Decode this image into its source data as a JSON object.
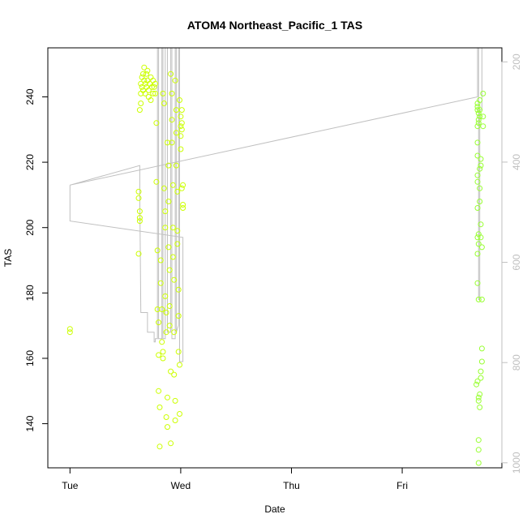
{
  "chart_data": {
    "type": "scatter",
    "title": "ATOM4 Northeast_Pacific_1 TAS",
    "xlabel": "Date",
    "ylabel": "TAS",
    "x_unit": "days since Tue 00:00",
    "x_ticks": [
      {
        "v": 0,
        "label": "Tue"
      },
      {
        "v": 1,
        "label": "Wed"
      },
      {
        "v": 2,
        "label": "Thu"
      },
      {
        "v": 3,
        "label": "Fri"
      }
    ],
    "xlim": [
      -0.2,
      3.9
    ],
    "ylim": [
      126.5,
      255
    ],
    "y_ticks": [
      140,
      160,
      180,
      200,
      220,
      240
    ],
    "right_axis": {
      "ticks": [
        200,
        400,
        600,
        800,
        1000
      ],
      "lim": [
        1010,
        172
      ],
      "color": "#bfbfbf"
    },
    "grid": false,
    "series": [
      {
        "color": "#ccff00",
        "points": [
          [
            0.0,
            169
          ],
          [
            0.0,
            168
          ],
          [
            0.62,
            192
          ],
          [
            0.62,
            211
          ],
          [
            0.62,
            209
          ],
          [
            0.63,
            205
          ],
          [
            0.63,
            203
          ],
          [
            0.63,
            202
          ],
          [
            0.63,
            236
          ],
          [
            0.64,
            238
          ],
          [
            0.64,
            241
          ],
          [
            0.64,
            244
          ],
          [
            0.65,
            246
          ],
          [
            0.65,
            243
          ],
          [
            0.66,
            247
          ],
          [
            0.66,
            242
          ],
          [
            0.67,
            245
          ],
          [
            0.67,
            249
          ],
          [
            0.68,
            244
          ],
          [
            0.68,
            241
          ],
          [
            0.69,
            247
          ],
          [
            0.69,
            243
          ],
          [
            0.7,
            245
          ],
          [
            0.7,
            248
          ],
          [
            0.71,
            242
          ],
          [
            0.71,
            240
          ],
          [
            0.72,
            244
          ],
          [
            0.73,
            246
          ],
          [
            0.73,
            239
          ],
          [
            0.74,
            243
          ],
          [
            0.75,
            245
          ],
          [
            0.75,
            241
          ],
          [
            0.76,
            243
          ],
          [
            0.77,
            244
          ],
          [
            0.77,
            241
          ],
          [
            0.78,
            232
          ],
          [
            0.78,
            214
          ],
          [
            0.79,
            193
          ],
          [
            0.79,
            175
          ],
          [
            0.8,
            171
          ],
          [
            0.8,
            161
          ],
          [
            0.8,
            150
          ],
          [
            0.81,
            145
          ],
          [
            0.81,
            133
          ],
          [
            0.82,
            190
          ],
          [
            0.82,
            183
          ],
          [
            0.83,
            165
          ],
          [
            0.83,
            175
          ],
          [
            0.84,
            162
          ],
          [
            0.84,
            160
          ],
          [
            0.84,
            241
          ],
          [
            0.85,
            238
          ],
          [
            0.85,
            212
          ],
          [
            0.86,
            205
          ],
          [
            0.86,
            200
          ],
          [
            0.86,
            179
          ],
          [
            0.87,
            174
          ],
          [
            0.87,
            168
          ],
          [
            0.87,
            142
          ],
          [
            0.88,
            139
          ],
          [
            0.88,
            148
          ],
          [
            0.88,
            226
          ],
          [
            0.89,
            219
          ],
          [
            0.89,
            208
          ],
          [
            0.89,
            194
          ],
          [
            0.9,
            187
          ],
          [
            0.9,
            176
          ],
          [
            0.9,
            170
          ],
          [
            0.91,
            156
          ],
          [
            0.91,
            134
          ],
          [
            0.91,
            247
          ],
          [
            0.92,
            241
          ],
          [
            0.92,
            233
          ],
          [
            0.92,
            226
          ],
          [
            0.93,
            213
          ],
          [
            0.93,
            200
          ],
          [
            0.93,
            191
          ],
          [
            0.94,
            184
          ],
          [
            0.94,
            168
          ],
          [
            0.94,
            155
          ],
          [
            0.95,
            147
          ],
          [
            0.95,
            141
          ],
          [
            0.95,
            245
          ],
          [
            0.96,
            236
          ],
          [
            0.96,
            229
          ],
          [
            0.96,
            219
          ],
          [
            0.97,
            211
          ],
          [
            0.97,
            199
          ],
          [
            0.97,
            195
          ],
          [
            0.98,
            181
          ],
          [
            0.98,
            173
          ],
          [
            0.98,
            162
          ],
          [
            0.99,
            158
          ],
          [
            0.99,
            143
          ],
          [
            0.99,
            239
          ],
          [
            1.0,
            234
          ],
          [
            1.0,
            231
          ],
          [
            1.0,
            228
          ],
          [
            1.0,
            224
          ],
          [
            1.01,
            236
          ],
          [
            1.01,
            232
          ],
          [
            1.01,
            230
          ],
          [
            1.01,
            212
          ],
          [
            1.02,
            213
          ],
          [
            1.02,
            207
          ],
          [
            1.02,
            206
          ]
        ]
      },
      {
        "color": "#99ff33",
        "points": [
          [
            3.68,
            238
          ],
          [
            3.68,
            236
          ],
          [
            3.68,
            237
          ],
          [
            3.69,
            233
          ],
          [
            3.69,
            235
          ],
          [
            3.69,
            232
          ],
          [
            3.7,
            236
          ],
          [
            3.7,
            234
          ],
          [
            3.7,
            239
          ],
          [
            3.68,
            231
          ],
          [
            3.68,
            226
          ],
          [
            3.68,
            222
          ],
          [
            3.68,
            216
          ],
          [
            3.68,
            214
          ],
          [
            3.68,
            206
          ],
          [
            3.68,
            197
          ],
          [
            3.68,
            192
          ],
          [
            3.68,
            183
          ],
          [
            3.69,
            178
          ],
          [
            3.69,
            195
          ],
          [
            3.69,
            198
          ],
          [
            3.7,
            208
          ],
          [
            3.7,
            212
          ],
          [
            3.7,
            218
          ],
          [
            3.71,
            221
          ],
          [
            3.71,
            219
          ],
          [
            3.71,
            201
          ],
          [
            3.71,
            197
          ],
          [
            3.72,
            194
          ],
          [
            3.72,
            178
          ],
          [
            3.73,
            241
          ],
          [
            3.73,
            234
          ],
          [
            3.73,
            231
          ],
          [
            3.67,
            152
          ],
          [
            3.68,
            153
          ],
          [
            3.69,
            148
          ],
          [
            3.69,
            147
          ],
          [
            3.7,
            145
          ],
          [
            3.7,
            149
          ],
          [
            3.71,
            154
          ],
          [
            3.71,
            156
          ],
          [
            3.72,
            163
          ],
          [
            3.72,
            159
          ],
          [
            3.69,
            132
          ],
          [
            3.69,
            135
          ],
          [
            3.69,
            128
          ]
        ]
      }
    ],
    "line": {
      "color": "#c0c0c0",
      "points": [
        [
          0.0,
          213
        ],
        [
          0.0,
          202
        ],
        [
          1.02,
          197
        ],
        [
          1.02,
          159
        ],
        [
          0.99,
          159
        ],
        [
          0.99,
          255
        ],
        [
          0.98,
          255
        ],
        [
          0.98,
          170
        ],
        [
          0.96,
          168
        ],
        [
          0.96,
          255
        ],
        [
          0.95,
          255
        ],
        [
          0.95,
          166
        ],
        [
          0.92,
          166
        ],
        [
          0.92,
          255
        ],
        [
          0.91,
          255
        ],
        [
          0.91,
          168
        ],
        [
          0.88,
          168
        ],
        [
          0.88,
          255
        ],
        [
          0.86,
          255
        ],
        [
          0.86,
          166
        ],
        [
          0.84,
          166
        ],
        [
          0.84,
          255
        ],
        [
          0.83,
          255
        ],
        [
          0.83,
          166
        ],
        [
          0.8,
          166
        ],
        [
          0.8,
          255
        ],
        [
          0.79,
          255
        ],
        [
          0.79,
          166
        ],
        [
          0.77,
          166
        ],
        [
          0.77,
          165
        ],
        [
          0.76,
          165
        ],
        [
          0.76,
          168
        ],
        [
          0.7,
          168
        ],
        [
          0.7,
          174
        ],
        [
          0.64,
          174
        ],
        [
          0.63,
          210
        ],
        [
          0.63,
          219
        ],
        [
          0.63,
          219
        ],
        [
          0.0,
          213
        ],
        [
          3.68,
          240
        ],
        [
          3.68,
          255
        ],
        [
          3.69,
          255
        ],
        [
          3.69,
          178
        ],
        [
          3.7,
          178
        ],
        [
          3.7,
          236
        ],
        [
          3.72,
          236
        ],
        [
          3.72,
          255
        ]
      ]
    }
  }
}
